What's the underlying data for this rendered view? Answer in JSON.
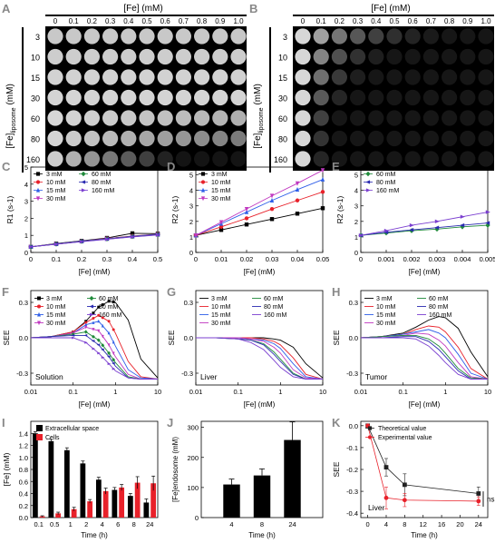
{
  "panels": {
    "A": {
      "letter": "A",
      "top_label": "[Fe]  (mM)",
      "cols": [
        "0",
        "0.1",
        "0.2",
        "0.3",
        "0.4",
        "0.5",
        "0.6",
        "0.7",
        "0.8",
        "0.9",
        "1.0"
      ],
      "rows": [
        "3",
        "10",
        "15",
        "30",
        "60",
        "80",
        "160"
      ],
      "ylabel_main": "[Fe]",
      "ylabel_sub": "liposome",
      "ylabel_unit": "(mM)"
    },
    "B": {
      "letter": "B",
      "top_label": "[Fe]  (mM)",
      "cols": [
        "0",
        "0.1",
        "0.2",
        "0.3",
        "0.4",
        "0.5",
        "0.6",
        "0.7",
        "0.8",
        "0.9",
        "1.0"
      ],
      "rows": [
        "3",
        "10",
        "15",
        "30",
        "60",
        "80",
        "160"
      ],
      "ylabel_main": "[Fe]",
      "ylabel_sub": "liposome",
      "ylabel_unit": "(mM)"
    }
  },
  "colors": {
    "3 mM": "#000000",
    "10 mM": "#e8212a",
    "15 mM": "#2e5ee8",
    "30 mM": "#c038c0",
    "60 mM": "#1f8a3a",
    "80 mM": "#2a2ab0",
    "160 mM": "#7b3fd0"
  },
  "chart_data": [
    {
      "panel": "C",
      "type": "line",
      "xlabel": "[Fe] (mM)",
      "ylabel": "R1 (s-1)",
      "xlim": [
        0,
        0.5
      ],
      "ylim": [
        0,
        5
      ],
      "xticks": [
        "0",
        "0.1",
        "0.2",
        "0.3",
        "0.4",
        "0.5"
      ],
      "yticks": [
        "0",
        "1",
        "2",
        "3",
        "4",
        "5"
      ],
      "x": [
        0,
        0.1,
        0.2,
        0.3,
        0.4,
        0.5
      ],
      "series": [
        {
          "name": "3 mM",
          "marker": "square",
          "values": [
            0.33,
            0.52,
            0.68,
            0.85,
            1.12,
            1.1
          ]
        },
        {
          "name": "10 mM",
          "marker": "circle",
          "values": [
            0.33,
            0.5,
            0.66,
            0.82,
            0.96,
            1.08
          ]
        },
        {
          "name": "15 mM",
          "marker": "tri-up",
          "values": [
            0.33,
            0.5,
            0.66,
            0.81,
            0.95,
            1.07
          ]
        },
        {
          "name": "30 mM",
          "marker": "tri-down",
          "values": [
            0.33,
            0.49,
            0.65,
            0.8,
            0.93,
            1.05
          ]
        },
        {
          "name": "60 mM",
          "marker": "diamond",
          "values": [
            0.33,
            0.49,
            0.65,
            0.79,
            0.93,
            1.04
          ]
        },
        {
          "name": "80 mM",
          "marker": "tri-left",
          "values": [
            0.33,
            0.48,
            0.64,
            0.78,
            0.92,
            1.03
          ]
        },
        {
          "name": "160 mM",
          "marker": "tri-right",
          "values": [
            0.33,
            0.48,
            0.63,
            0.77,
            0.91,
            1.02
          ]
        }
      ]
    },
    {
      "panel": "D",
      "type": "line",
      "xlabel": "[Fe] (mM)",
      "ylabel": "R2 (s-1)",
      "xlim": [
        0,
        0.05
      ],
      "ylim": [
        0,
        5.5
      ],
      "xticks": [
        "0",
        "0.01",
        "0.02",
        "0.03",
        "0.04",
        "0.05"
      ],
      "yticks": [
        "0",
        "1",
        "2",
        "3",
        "4",
        "5"
      ],
      "x": [
        0,
        0.01,
        0.02,
        0.03,
        0.04,
        0.05
      ],
      "series": [
        {
          "name": "3 mM",
          "marker": "square",
          "values": [
            1.1,
            1.45,
            1.8,
            2.15,
            2.5,
            2.85
          ]
        },
        {
          "name": "10 mM",
          "marker": "circle",
          "values": [
            1.1,
            1.65,
            2.2,
            2.8,
            3.35,
            3.9
          ]
        },
        {
          "name": "15 mM",
          "marker": "tri-up",
          "values": [
            1.1,
            1.85,
            2.6,
            3.35,
            4.05,
            4.7
          ]
        },
        {
          "name": "30 mM",
          "marker": "tri-down",
          "values": [
            1.1,
            1.95,
            2.8,
            3.65,
            4.45,
            5.3
          ]
        }
      ]
    },
    {
      "panel": "E",
      "type": "line",
      "xlabel": "[Fe] (mM)",
      "ylabel": "R2 (s-1)",
      "xlim": [
        0,
        0.005
      ],
      "ylim": [
        0,
        5.5
      ],
      "xticks": [
        "0",
        "0.001",
        "0.002",
        "0.003",
        "0.004",
        "0.005"
      ],
      "yticks": [
        "0",
        "1",
        "2",
        "3",
        "4",
        "5"
      ],
      "x": [
        0,
        0.001,
        0.002,
        0.003,
        0.004,
        0.005
      ],
      "series": [
        {
          "name": "60 mM",
          "marker": "diamond",
          "values": [
            1.1,
            1.25,
            1.4,
            1.5,
            1.65,
            1.75
          ]
        },
        {
          "name": "80 mM",
          "marker": "tri-left",
          "values": [
            1.1,
            1.3,
            1.45,
            1.6,
            1.75,
            1.9
          ]
        },
        {
          "name": "160 mM",
          "marker": "tri-right",
          "values": [
            1.1,
            1.4,
            1.75,
            2.0,
            2.3,
            2.6
          ]
        }
      ]
    },
    {
      "panel": "F",
      "type": "line",
      "xlabel": "[Fe] (mM)",
      "ylabel": "SEE",
      "annotation": "Solution",
      "xscale": "log",
      "xlim": [
        0.01,
        10
      ],
      "ylim": [
        -0.4,
        0.4
      ],
      "xticks": [
        "0.01",
        "0.1",
        "1",
        "10"
      ],
      "yticks": [
        "-0.3",
        "0.0",
        "0.3"
      ],
      "x": [
        0.01,
        0.03,
        0.1,
        0.2,
        0.4,
        0.7,
        1,
        2,
        4,
        10
      ],
      "series": [
        {
          "name": "3 mM",
          "values": [
            0,
            0.01,
            0.05,
            0.14,
            0.26,
            0.31,
            0.3,
            0.15,
            -0.18,
            -0.34
          ]
        },
        {
          "name": "10 mM",
          "values": [
            0,
            0.01,
            0.05,
            0.13,
            0.19,
            0.14,
            0.04,
            -0.2,
            -0.33,
            -0.35
          ]
        },
        {
          "name": "15 mM",
          "values": [
            0,
            0.01,
            0.04,
            0.11,
            0.14,
            0.04,
            -0.07,
            -0.27,
            -0.34,
            -0.35
          ]
        },
        {
          "name": "30 mM",
          "values": [
            0,
            0.01,
            0.04,
            0.09,
            0.06,
            -0.06,
            -0.16,
            -0.31,
            -0.35,
            -0.35
          ]
        },
        {
          "name": "60 mM",
          "values": [
            0,
            0.01,
            0.03,
            0.05,
            -0.02,
            -0.13,
            -0.21,
            -0.33,
            -0.35,
            -0.35
          ]
        },
        {
          "name": "80 mM",
          "values": [
            0,
            0.01,
            0.02,
            0.02,
            -0.06,
            -0.16,
            -0.24,
            -0.34,
            -0.35,
            -0.35
          ]
        },
        {
          "name": "160 mM",
          "values": [
            0,
            0.0,
            0.0,
            -0.04,
            -0.13,
            -0.22,
            -0.28,
            -0.34,
            -0.35,
            -0.35
          ]
        }
      ]
    },
    {
      "panel": "G",
      "type": "line",
      "xlabel": "[Fe] (mM)",
      "ylabel": "SEE",
      "annotation": "Liver",
      "xscale": "log",
      "xlim": [
        0.01,
        10
      ],
      "ylim": [
        -0.4,
        0.4
      ],
      "xticks": [
        "0.01",
        "0.1",
        "1",
        "10"
      ],
      "yticks": [
        "-0.3",
        "0.0",
        "0.3"
      ],
      "x": [
        0.01,
        0.03,
        0.1,
        0.2,
        0.4,
        0.7,
        1,
        2,
        4,
        10
      ],
      "series": [
        {
          "name": "3 mM",
          "values": [
            0,
            0,
            0,
            0,
            0,
            -0.01,
            -0.02,
            -0.08,
            -0.22,
            -0.34
          ]
        },
        {
          "name": "10 mM",
          "values": [
            0,
            0,
            0,
            0,
            -0.01,
            -0.03,
            -0.06,
            -0.17,
            -0.31,
            -0.35
          ]
        },
        {
          "name": "15 mM",
          "values": [
            0,
            0,
            0,
            -0.01,
            -0.02,
            -0.05,
            -0.09,
            -0.22,
            -0.33,
            -0.35
          ]
        },
        {
          "name": "30 mM",
          "values": [
            0,
            0,
            0,
            -0.01,
            -0.03,
            -0.08,
            -0.13,
            -0.27,
            -0.34,
            -0.35
          ]
        },
        {
          "name": "60 mM",
          "values": [
            0,
            0,
            -0.01,
            -0.02,
            -0.05,
            -0.12,
            -0.18,
            -0.3,
            -0.35,
            -0.35
          ]
        },
        {
          "name": "80 mM",
          "values": [
            0,
            0,
            -0.01,
            -0.02,
            -0.06,
            -0.14,
            -0.2,
            -0.31,
            -0.35,
            -0.35
          ]
        },
        {
          "name": "160 mM",
          "values": [
            0,
            0,
            -0.01,
            -0.04,
            -0.1,
            -0.19,
            -0.25,
            -0.33,
            -0.35,
            -0.35
          ]
        }
      ]
    },
    {
      "panel": "H",
      "type": "line",
      "xlabel": "[Fe] (mM)",
      "ylabel": "SEE",
      "annotation": "Tumor",
      "xscale": "log",
      "xlim": [
        0.01,
        10
      ],
      "ylim": [
        -0.4,
        0.4
      ],
      "xticks": [
        "0.01",
        "0.1",
        "1",
        "10"
      ],
      "yticks": [
        "-0.3",
        "0.0",
        "0.3"
      ],
      "x": [
        0.01,
        0.03,
        0.1,
        0.2,
        0.4,
        0.7,
        1,
        2,
        4,
        10
      ],
      "series": [
        {
          "name": "3 mM",
          "values": [
            0,
            0.01,
            0.04,
            0.09,
            0.15,
            0.18,
            0.17,
            0.08,
            -0.12,
            -0.33
          ]
        },
        {
          "name": "10 mM",
          "values": [
            0,
            0.01,
            0.03,
            0.07,
            0.1,
            0.09,
            0.05,
            -0.08,
            -0.26,
            -0.35
          ]
        },
        {
          "name": "15 mM",
          "values": [
            0,
            0.01,
            0.03,
            0.05,
            0.07,
            0.04,
            0.0,
            -0.14,
            -0.3,
            -0.35
          ]
        },
        {
          "name": "30 mM",
          "values": [
            0,
            0.01,
            0.02,
            0.04,
            0.03,
            -0.02,
            -0.07,
            -0.21,
            -0.33,
            -0.35
          ]
        },
        {
          "name": "60 mM",
          "values": [
            0,
            0.01,
            0.02,
            0.02,
            -0.01,
            -0.07,
            -0.13,
            -0.26,
            -0.34,
            -0.35
          ]
        },
        {
          "name": "80 mM",
          "values": [
            0,
            0,
            0.01,
            0.01,
            -0.03,
            -0.1,
            -0.16,
            -0.28,
            -0.35,
            -0.35
          ]
        },
        {
          "name": "160 mM",
          "values": [
            0,
            0,
            0,
            -0.01,
            -0.07,
            -0.15,
            -0.21,
            -0.31,
            -0.35,
            -0.35
          ]
        }
      ]
    },
    {
      "panel": "I",
      "type": "bar",
      "xlabel": "Time (h)",
      "ylabel": "[Fe] (mM)",
      "ylim": [
        0,
        1.6
      ],
      "categories": [
        "0.1",
        "0.5",
        "1",
        "2",
        "4",
        "6",
        "8",
        "24"
      ],
      "yticks": [
        "0.0",
        "0.2",
        "0.4",
        "0.6",
        "0.8",
        "1.0",
        "1.2",
        "1.4"
      ],
      "series": [
        {
          "name": "Extracellular space",
          "color": "#000000",
          "values": [
            1.4,
            1.27,
            1.12,
            0.9,
            0.63,
            0.46,
            0.36,
            0.25
          ],
          "err": [
            0.03,
            0.03,
            0.04,
            0.04,
            0.04,
            0.04,
            0.04,
            0.06
          ]
        },
        {
          "name": "Cells",
          "color": "#e8212a",
          "values": [
            0.02,
            0.07,
            0.14,
            0.27,
            0.44,
            0.5,
            0.58,
            0.57
          ],
          "err": [
            0.01,
            0.02,
            0.03,
            0.03,
            0.05,
            0.05,
            0.1,
            0.12
          ]
        }
      ]
    },
    {
      "panel": "J",
      "type": "bar",
      "xlabel": "Time (h)",
      "ylabel": "[Fe]endosome (mM)",
      "ylim": [
        0,
        320
      ],
      "categories": [
        "4",
        "8",
        "24"
      ],
      "yticks": [
        "0",
        "100",
        "200",
        "300"
      ],
      "values": [
        110,
        140,
        258
      ],
      "err": [
        18,
        22,
        60
      ]
    },
    {
      "panel": "K",
      "type": "line",
      "xlabel": "Time (h)",
      "ylabel": "SEE",
      "annotation": "Liver",
      "significance": "ns",
      "xlim": [
        -1.5,
        26
      ],
      "ylim": [
        -0.42,
        0.02
      ],
      "x": [
        0,
        4,
        8,
        24
      ],
      "xticks": [
        "0",
        "4",
        "8",
        "12",
        "16",
        "20",
        "24"
      ],
      "yticks": [
        "0.0",
        "-0.1",
        "-0.2",
        "-0.3",
        "-0.4"
      ],
      "series": [
        {
          "name": "Theoretical value",
          "color": "#222222",
          "marker": "square",
          "values": [
            0,
            -0.19,
            -0.27,
            -0.31
          ],
          "err": [
            0,
            0.04,
            0.05,
            0.03
          ]
        },
        {
          "name": "Experimental value",
          "color": "#e8212a",
          "marker": "circle",
          "values": [
            0,
            -0.33,
            -0.34,
            -0.345
          ],
          "err": [
            0,
            0.05,
            0.03,
            0.02
          ]
        }
      ]
    }
  ]
}
